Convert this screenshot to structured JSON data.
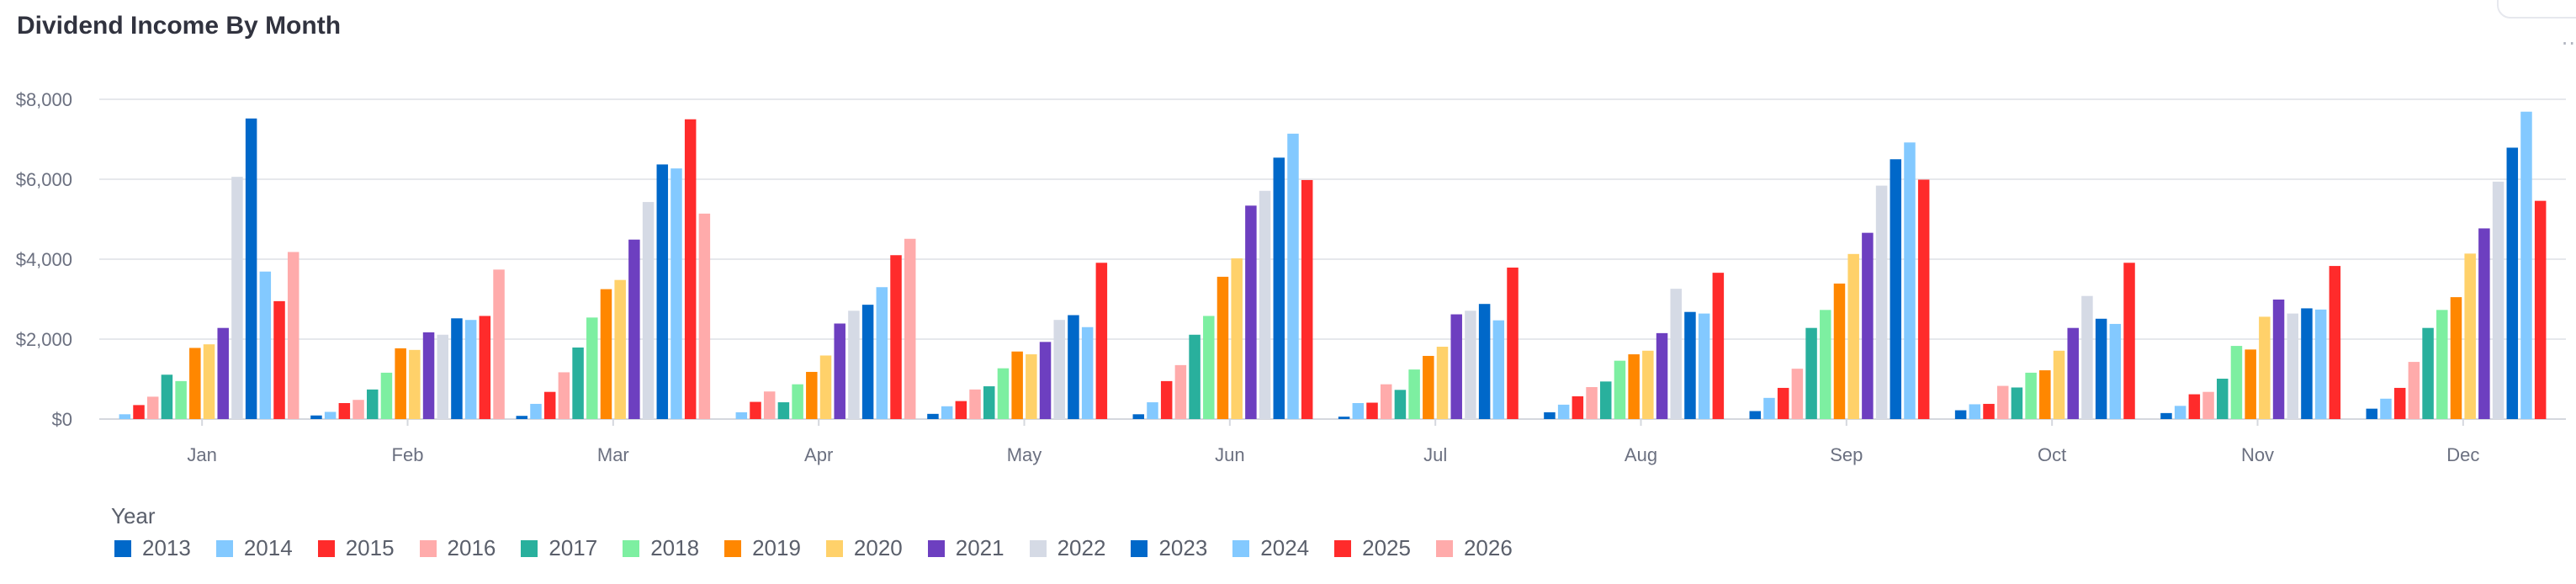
{
  "title": "Dividend Income By Month",
  "legend_title": "Year",
  "series_colors": {
    "2013": "#0068c9",
    "2014": "#83c9ff",
    "2015": "#ff2b2b",
    "2016": "#ffabab",
    "2017": "#29b09d",
    "2018": "#7defa1",
    "2019": "#ff8700",
    "2020": "#ffd16a",
    "2021": "#6d3fc0",
    "2022": "#d5dae5",
    "2023": "#0068c9",
    "2024": "#83c9ff",
    "2025": "#ff2b2b",
    "2026": "#ffabab"
  },
  "chart_data": {
    "type": "bar",
    "title": "Dividend Income By Month",
    "xlabel": "",
    "ylabel": "",
    "ylim": [
      0,
      8200
    ],
    "yticks": [
      0,
      2000,
      4000,
      6000,
      8000
    ],
    "ytick_labels": [
      "$0",
      "$2,000",
      "$4,000",
      "$6,000",
      "$8,000"
    ],
    "grid": true,
    "legend_placement": "bottom-left",
    "categories": [
      "Jan",
      "Feb",
      "Mar",
      "Apr",
      "May",
      "Jun",
      "Jul",
      "Aug",
      "Sep",
      "Oct",
      "Nov",
      "Dec"
    ],
    "series": [
      {
        "name": "2013",
        "values": [
          0,
          90,
          80,
          0,
          130,
          120,
          60,
          170,
          200,
          220,
          150,
          260
        ]
      },
      {
        "name": "2014",
        "values": [
          120,
          180,
          380,
          170,
          320,
          420,
          400,
          360,
          530,
          370,
          330,
          510
        ]
      },
      {
        "name": "2015",
        "values": [
          350,
          400,
          680,
          430,
          450,
          950,
          410,
          570,
          780,
          380,
          620,
          780
        ]
      },
      {
        "name": "2016",
        "values": [
          560,
          480,
          1170,
          690,
          740,
          1350,
          870,
          800,
          1260,
          830,
          680,
          1430
        ]
      },
      {
        "name": "2017",
        "values": [
          1110,
          740,
          1790,
          420,
          820,
          2110,
          730,
          940,
          2280,
          790,
          1010,
          2280
        ]
      },
      {
        "name": "2018",
        "values": [
          950,
          1160,
          2540,
          870,
          1270,
          2580,
          1240,
          1460,
          2730,
          1160,
          1830,
          2730
        ]
      },
      {
        "name": "2019",
        "values": [
          1780,
          1770,
          3250,
          1180,
          1690,
          3560,
          1580,
          1620,
          3390,
          1220,
          1740,
          3050
        ]
      },
      {
        "name": "2020",
        "values": [
          1870,
          1730,
          3480,
          1590,
          1620,
          4020,
          1810,
          1710,
          4130,
          1710,
          2560,
          4140
        ]
      },
      {
        "name": "2021",
        "values": [
          2280,
          2170,
          4490,
          2390,
          1930,
          5340,
          2620,
          2150,
          4660,
          2280,
          2990,
          4770
        ]
      },
      {
        "name": "2022",
        "values": [
          6060,
          2110,
          5430,
          2710,
          2480,
          5710,
          2710,
          3260,
          5840,
          3080,
          2640,
          5940
        ]
      },
      {
        "name": "2023",
        "values": [
          7520,
          2520,
          6370,
          2860,
          2600,
          6540,
          2880,
          2680,
          6500,
          2510,
          2770,
          6790
        ]
      },
      {
        "name": "2024",
        "values": [
          3690,
          2480,
          6270,
          3300,
          2300,
          7140,
          2470,
          2640,
          6920,
          2380,
          2740,
          7690
        ]
      },
      {
        "name": "2025",
        "values": [
          2950,
          2580,
          7500,
          4100,
          3910,
          5980,
          3790,
          3660,
          5990,
          3910,
          3830,
          5460
        ]
      },
      {
        "name": "2026",
        "values": [
          4180,
          3740,
          5140,
          4510,
          0,
          0,
          0,
          0,
          0,
          0,
          0,
          0
        ]
      }
    ]
  }
}
